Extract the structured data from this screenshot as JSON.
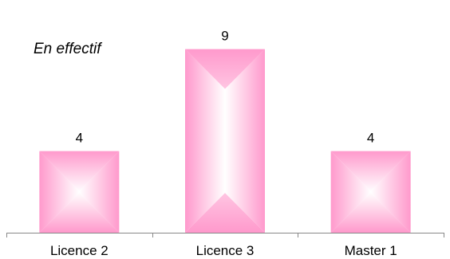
{
  "chart_data": {
    "type": "bar",
    "title": "",
    "subtitle": "En effectif",
    "categories": [
      "Licence 2",
      "Licence 3",
      "Master 1"
    ],
    "values": [
      4,
      9,
      4
    ],
    "xlabel": "",
    "ylabel": "",
    "ylim": [
      0,
      10
    ],
    "grid": false,
    "legend": "none",
    "data_labels": true,
    "colors": {
      "bar_edge": "#ff99cc",
      "bar_center": "#ffffff",
      "axis": "#888888"
    }
  }
}
